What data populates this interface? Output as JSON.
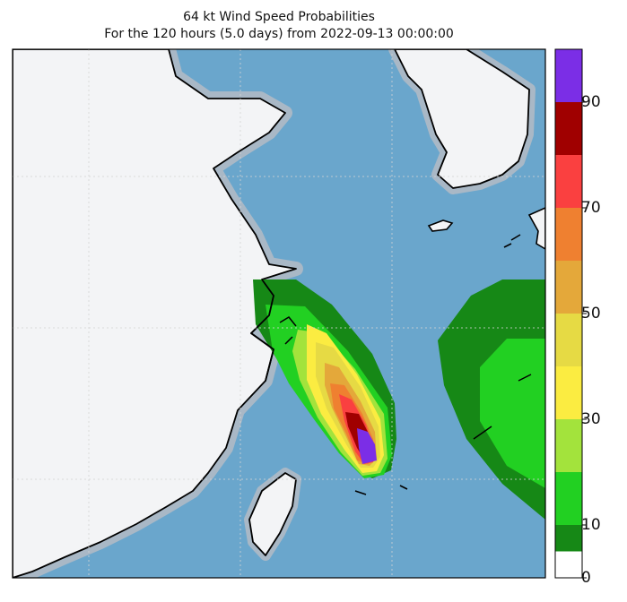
{
  "title": "64 kt Wind Speed Probabilities",
  "subtitle": "For the 120 hours (5.0 days) from 2022-09-13 00:00:00",
  "colorbar": {
    "min": 0,
    "max": 100,
    "tick_labels": [
      "0",
      "10",
      "30",
      "50",
      "70",
      "90"
    ],
    "bands": [
      {
        "from": 0,
        "to": 5,
        "color": "#ffffff"
      },
      {
        "from": 5,
        "to": 10,
        "color": "#168816"
      },
      {
        "from": 10,
        "to": 20,
        "color": "#22d022"
      },
      {
        "from": 20,
        "to": 30,
        "color": "#a3e33c"
      },
      {
        "from": 30,
        "to": 40,
        "color": "#fbec41"
      },
      {
        "from": 40,
        "to": 50,
        "color": "#e6da44"
      },
      {
        "from": 50,
        "to": 60,
        "color": "#e4a83a"
      },
      {
        "from": 60,
        "to": 70,
        "color": "#ef8030"
      },
      {
        "from": 70,
        "to": 80,
        "color": "#fa4040"
      },
      {
        "from": 80,
        "to": 90,
        "color": "#a00000"
      },
      {
        "from": 90,
        "to": 100,
        "color": "#7b2ee6"
      }
    ]
  },
  "colors": {
    "ocean": "#6aa6cc",
    "land": "#f3f4f6",
    "coast_halo": "#a9b8c6",
    "coastline": "#000000"
  }
}
